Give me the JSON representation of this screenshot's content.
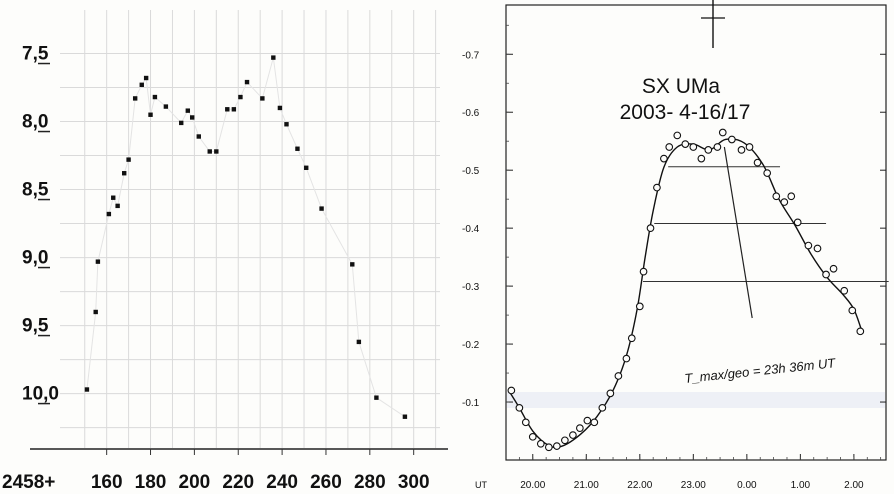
{
  "chart_data": [
    {
      "type": "scatter",
      "x_prefix": "2458+",
      "x_ticks": [
        160,
        180,
        200,
        220,
        240,
        260,
        280,
        300
      ],
      "y_ticks": [
        "7,5",
        "8,0",
        "8,5",
        "9,0",
        "9,5",
        "10,0"
      ],
      "y_tick_values": [
        7.5,
        8.0,
        8.5,
        9.0,
        9.5,
        10.0
      ],
      "y_inverted": true,
      "xlim": [
        141,
        312
      ],
      "ylim": [
        7.18,
        10.4
      ],
      "grid": true,
      "points": [
        [
          151,
          9.97
        ],
        [
          155,
          9.4
        ],
        [
          156,
          9.03
        ],
        [
          161,
          8.68
        ],
        [
          163,
          8.56
        ],
        [
          165,
          8.62
        ],
        [
          168,
          8.38
        ],
        [
          170,
          8.28
        ],
        [
          173,
          7.83
        ],
        [
          176,
          7.73
        ],
        [
          178,
          7.68
        ],
        [
          180,
          7.95
        ],
        [
          182,
          7.82
        ],
        [
          187,
          7.89
        ],
        [
          194,
          8.01
        ],
        [
          197,
          7.92
        ],
        [
          199,
          7.97
        ],
        [
          202,
          8.11
        ],
        [
          207,
          8.22
        ],
        [
          210,
          8.22
        ],
        [
          215,
          7.91
        ],
        [
          218,
          7.91
        ],
        [
          221,
          7.82
        ],
        [
          224,
          7.71
        ],
        [
          231,
          7.83
        ],
        [
          236,
          7.53
        ],
        [
          239,
          7.9
        ],
        [
          242,
          8.02
        ],
        [
          247,
          8.2
        ],
        [
          251,
          8.34
        ],
        [
          258,
          8.64
        ],
        [
          272,
          9.05
        ],
        [
          275,
          9.62
        ],
        [
          283,
          10.03
        ],
        [
          296,
          10.17
        ]
      ]
    },
    {
      "type": "line",
      "title": "SX UMa",
      "subtitle": "2003- 4-16/17",
      "xlabel": "UT",
      "x_ticks": [
        "20.00",
        "21.00",
        "22.00",
        "23.00",
        "0.00",
        "1.00",
        "2.00"
      ],
      "x_tick_values": [
        20,
        21,
        22,
        23,
        24,
        25,
        26
      ],
      "y_ticks": [
        "-0.7",
        "-0.6",
        "-0.5",
        "-0.4",
        "-0.3",
        "-0.2",
        "-0.1"
      ],
      "y_tick_values": [
        -0.7,
        -0.6,
        -0.5,
        -0.4,
        -0.3,
        -0.2,
        -0.1
      ],
      "y_inverted": true,
      "xlim": [
        19.5,
        26.6
      ],
      "ylim": [
        -0.785,
        -0.0
      ],
      "annotation": "T_max/geo = 23h 36m UT",
      "points": [
        [
          19.6,
          -0.12
        ],
        [
          19.75,
          -0.09
        ],
        [
          19.87,
          -0.065
        ],
        [
          20.0,
          -0.04
        ],
        [
          20.15,
          -0.028
        ],
        [
          20.3,
          -0.022
        ],
        [
          20.45,
          -0.024
        ],
        [
          20.6,
          -0.034
        ],
        [
          20.75,
          -0.043
        ],
        [
          20.88,
          -0.055
        ],
        [
          21.02,
          -0.068
        ],
        [
          21.15,
          -0.065
        ],
        [
          21.3,
          -0.09
        ],
        [
          21.45,
          -0.115
        ],
        [
          21.6,
          -0.145
        ],
        [
          21.75,
          -0.175
        ],
        [
          21.85,
          -0.21
        ],
        [
          22.0,
          -0.265
        ],
        [
          22.07,
          -0.325
        ],
        [
          22.2,
          -0.4
        ],
        [
          22.32,
          -0.47
        ],
        [
          22.45,
          -0.52
        ],
        [
          22.55,
          -0.54
        ],
        [
          22.7,
          -0.56
        ],
        [
          22.85,
          -0.545
        ],
        [
          23.0,
          -0.54
        ],
        [
          23.15,
          -0.52
        ],
        [
          23.28,
          -0.535
        ],
        [
          23.45,
          -0.54
        ],
        [
          23.55,
          -0.565
        ],
        [
          23.72,
          -0.553
        ],
        [
          23.9,
          -0.535
        ],
        [
          24.05,
          -0.54
        ],
        [
          24.2,
          -0.513
        ],
        [
          24.38,
          -0.495
        ],
        [
          24.55,
          -0.455
        ],
        [
          24.7,
          -0.445
        ],
        [
          24.83,
          -0.455
        ],
        [
          24.95,
          -0.41
        ],
        [
          25.15,
          -0.37
        ],
        [
          25.32,
          -0.365
        ],
        [
          25.48,
          -0.32
        ],
        [
          25.62,
          -0.33
        ],
        [
          25.82,
          -0.292
        ],
        [
          25.97,
          -0.258
        ],
        [
          26.12,
          -0.222
        ]
      ],
      "fit_curve": [
        [
          19.55,
          -0.12
        ],
        [
          19.75,
          -0.09
        ],
        [
          20.0,
          -0.05
        ],
        [
          20.3,
          -0.025
        ],
        [
          20.55,
          -0.024
        ],
        [
          20.9,
          -0.045
        ],
        [
          21.2,
          -0.075
        ],
        [
          21.5,
          -0.12
        ],
        [
          21.75,
          -0.18
        ],
        [
          21.95,
          -0.26
        ],
        [
          22.1,
          -0.35
        ],
        [
          22.25,
          -0.43
        ],
        [
          22.45,
          -0.505
        ],
        [
          22.7,
          -0.54
        ],
        [
          23.0,
          -0.545
        ],
        [
          23.3,
          -0.535
        ],
        [
          23.6,
          -0.553
        ],
        [
          23.95,
          -0.547
        ],
        [
          24.3,
          -0.51
        ],
        [
          24.6,
          -0.45
        ],
        [
          24.9,
          -0.405
        ],
        [
          25.2,
          -0.355
        ],
        [
          25.5,
          -0.315
        ],
        [
          25.8,
          -0.285
        ],
        [
          26.0,
          -0.26
        ],
        [
          26.15,
          -0.222
        ]
      ],
      "bisector_chords": [
        {
          "y": -0.506,
          "x_from": 22.53,
          "x_to": 24.62
        },
        {
          "y": -0.408,
          "x_from": 22.27,
          "x_to": 25.48
        },
        {
          "y": -0.308,
          "x_from": 22.06,
          "x_to": 26.65
        }
      ],
      "bisector_line": [
        [
          23.58,
          -0.54
        ],
        [
          24.1,
          -0.245
        ]
      ]
    }
  ]
}
